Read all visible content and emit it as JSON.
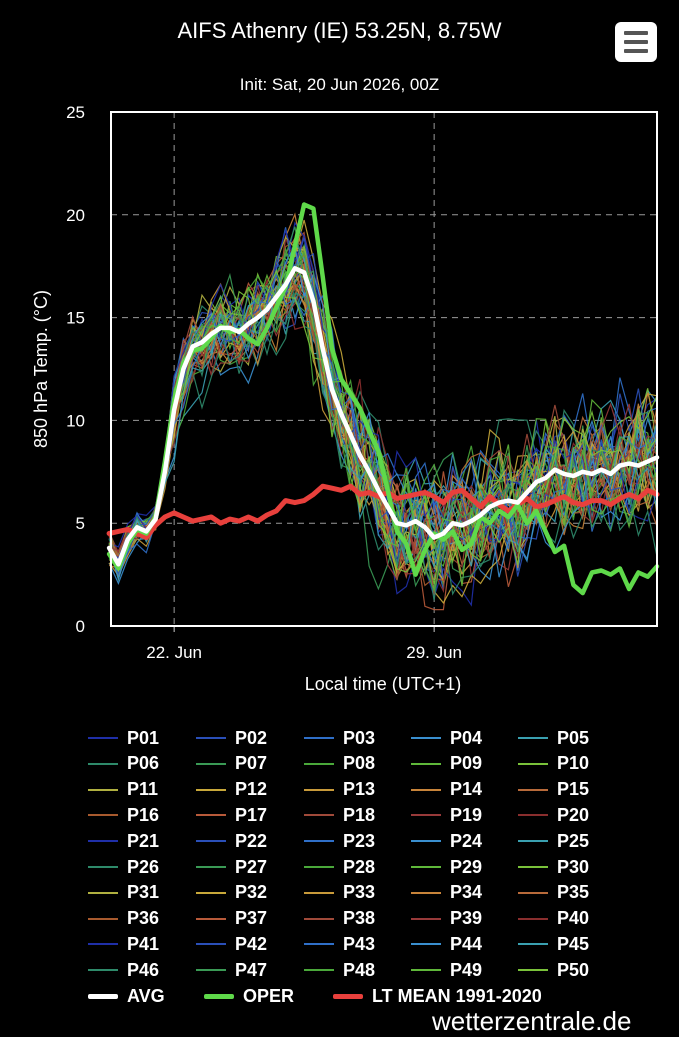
{
  "header": {
    "title": "AIFS Athenry (IE) 53.25N, 8.75W",
    "subtitle": "Init: Sat, 20 Jun 2026, 00Z",
    "menu_icon": "hamburger-menu-icon"
  },
  "watermark": "wetterzentrale.de",
  "colors": {
    "avg": "#ffffff",
    "oper": "#5fd94a",
    "lt_mean": "#e8403c",
    "background": "#000000",
    "grid": "#9a9a9a"
  },
  "chart_data": {
    "type": "line",
    "title": "AIFS Athenry (IE) 53.25N, 8.75W",
    "subtitle": "Init: Sat, 20 Jun 2026, 00Z",
    "xlabel": "Local time (UTC+1)",
    "ylabel": "850 hPa Temp. (°C)",
    "x_unit": "days from Init (20 Jun 2026, 00Z)",
    "xlim": [
      0.3,
      15.0
    ],
    "ylim": [
      0,
      25
    ],
    "yticks": [
      0,
      5,
      10,
      15,
      20,
      25
    ],
    "xticks": [
      {
        "x": 2,
        "label": "22. Jun"
      },
      {
        "x": 9,
        "label": "29. Jun"
      }
    ],
    "grid": true,
    "legend_position": "bottom",
    "x": [
      0.25,
      0.5,
      0.75,
      1.0,
      1.25,
      1.5,
      1.75,
      2.0,
      2.25,
      2.5,
      2.75,
      3.0,
      3.25,
      3.5,
      3.75,
      4.0,
      4.25,
      4.5,
      4.75,
      5.0,
      5.25,
      5.5,
      5.75,
      6.0,
      6.25,
      6.5,
      6.75,
      7.0,
      7.25,
      7.5,
      7.75,
      8.0,
      8.25,
      8.5,
      8.75,
      9.0,
      9.25,
      9.5,
      9.75,
      10.0,
      10.25,
      10.5,
      10.75,
      11.0,
      11.25,
      11.5,
      11.75,
      12.0,
      12.25,
      12.5,
      12.75,
      13.0,
      13.25,
      13.5,
      13.75,
      14.0,
      14.25,
      14.5,
      14.75,
      15.0
    ],
    "ensemble_members": [
      "P01",
      "P02",
      "P03",
      "P04",
      "P05",
      "P06",
      "P07",
      "P08",
      "P09",
      "P10",
      "P11",
      "P12",
      "P13",
      "P14",
      "P15",
      "P16",
      "P17",
      "P18",
      "P19",
      "P20",
      "P21",
      "P22",
      "P23",
      "P24",
      "P25",
      "P26",
      "P27",
      "P28",
      "P29",
      "P30",
      "P31",
      "P32",
      "P33",
      "P34",
      "P35",
      "P36",
      "P37",
      "P38",
      "P39",
      "P40",
      "P41",
      "P42",
      "P43",
      "P44",
      "P45",
      "P46",
      "P47",
      "P48",
      "P49",
      "P50"
    ],
    "ensemble_colors": [
      "#1f2fa8",
      "#2a4fb8",
      "#2f6fc8",
      "#3a8fcf",
      "#3aa0b0",
      "#2e8a6a",
      "#3a9a55",
      "#4aa83a",
      "#5fb83a",
      "#7ac23a",
      "#b0b040",
      "#c8a83a",
      "#c89a3a",
      "#c8843a",
      "#b86a3a",
      "#a85a2e",
      "#b85a3a",
      "#a04a3a",
      "#983a3a",
      "#8a2e2e",
      "#1f2fa8",
      "#2a4fb8",
      "#2f6fc8",
      "#3a8fcf",
      "#3aa0b0",
      "#2e8a6a",
      "#3a9a55",
      "#4aa83a",
      "#5fb83a",
      "#7ac23a",
      "#b0b040",
      "#c8a83a",
      "#c89a3a",
      "#c8843a",
      "#b86a3a",
      "#a85a2e",
      "#b85a3a",
      "#a04a3a",
      "#983a3a",
      "#8a2e2e",
      "#1f2fa8",
      "#2a4fb8",
      "#2f6fc8",
      "#3a8fcf",
      "#3aa0b0",
      "#2e8a6a",
      "#3a9a55",
      "#4aa83a",
      "#5fb83a",
      "#7ac23a"
    ],
    "series": [
      {
        "name": "AVG",
        "values": [
          3.8,
          3.0,
          4.2,
          4.8,
          4.6,
          5.2,
          7.5,
          10.5,
          12.5,
          13.6,
          13.8,
          14.2,
          14.5,
          14.5,
          14.3,
          14.7,
          15.0,
          15.4,
          16.0,
          16.6,
          17.4,
          17.2,
          15.8,
          13.5,
          11.5,
          10.3,
          9.3,
          8.3,
          7.5,
          6.6,
          5.8,
          5.0,
          4.9,
          5.1,
          4.8,
          4.3,
          4.5,
          5.0,
          4.9,
          5.1,
          5.4,
          5.8,
          6.0,
          6.1,
          6.0,
          6.5,
          7.0,
          7.2,
          7.6,
          7.4,
          7.3,
          7.5,
          7.4,
          7.6,
          7.4,
          7.8,
          7.9,
          7.8,
          8.0,
          8.2
        ]
      },
      {
        "name": "OPER",
        "values": [
          3.5,
          2.8,
          4.0,
          4.7,
          4.5,
          5.3,
          8.0,
          11.0,
          12.8,
          13.4,
          13.5,
          14.0,
          14.6,
          14.3,
          14.4,
          14.0,
          13.7,
          14.5,
          15.5,
          16.5,
          18.5,
          20.5,
          20.3,
          17.0,
          13.5,
          12.0,
          11.3,
          10.6,
          9.5,
          8.5,
          6.6,
          4.6,
          4.0,
          2.5,
          3.7,
          4.5,
          4.2,
          4.6,
          3.7,
          4.0,
          5.3,
          5.0,
          5.6,
          5.3,
          5.9,
          5.0,
          5.6,
          4.6,
          3.6,
          3.9,
          2.0,
          1.6,
          2.6,
          2.7,
          2.5,
          2.8,
          1.8,
          2.6,
          2.4,
          2.9
        ]
      },
      {
        "name": "LT MEAN 1991-2020",
        "values": [
          4.5,
          4.6,
          4.7,
          4.5,
          4.3,
          4.9,
          5.3,
          5.5,
          5.3,
          5.1,
          5.2,
          5.3,
          5.0,
          5.2,
          5.1,
          5.3,
          5.1,
          5.4,
          5.6,
          6.1,
          6.0,
          6.1,
          6.4,
          6.8,
          6.7,
          6.6,
          6.8,
          6.4,
          6.5,
          6.3,
          6.5,
          6.2,
          6.3,
          6.4,
          6.5,
          6.3,
          6.0,
          6.5,
          6.6,
          6.2,
          5.8,
          6.3,
          5.9,
          5.6,
          5.9,
          6.2,
          5.8,
          5.9,
          6.1,
          6.3,
          6.0,
          5.9,
          6.1,
          6.1,
          5.9,
          6.2,
          6.4,
          6.2,
          6.6,
          6.4
        ]
      }
    ]
  },
  "legend": {
    "members": [
      "P01",
      "P02",
      "P03",
      "P04",
      "P05",
      "P06",
      "P07",
      "P08",
      "P09",
      "P10",
      "P11",
      "P12",
      "P13",
      "P14",
      "P15",
      "P16",
      "P17",
      "P18",
      "P19",
      "P20",
      "P21",
      "P22",
      "P23",
      "P24",
      "P25",
      "P26",
      "P27",
      "P28",
      "P29",
      "P30",
      "P31",
      "P32",
      "P33",
      "P34",
      "P35",
      "P36",
      "P37",
      "P38",
      "P39",
      "P40",
      "P41",
      "P42",
      "P43",
      "P44",
      "P45",
      "P46",
      "P47",
      "P48",
      "P49",
      "P50"
    ],
    "avg": "AVG",
    "oper": "OPER",
    "lt_mean": "LT MEAN 1991-2020"
  }
}
